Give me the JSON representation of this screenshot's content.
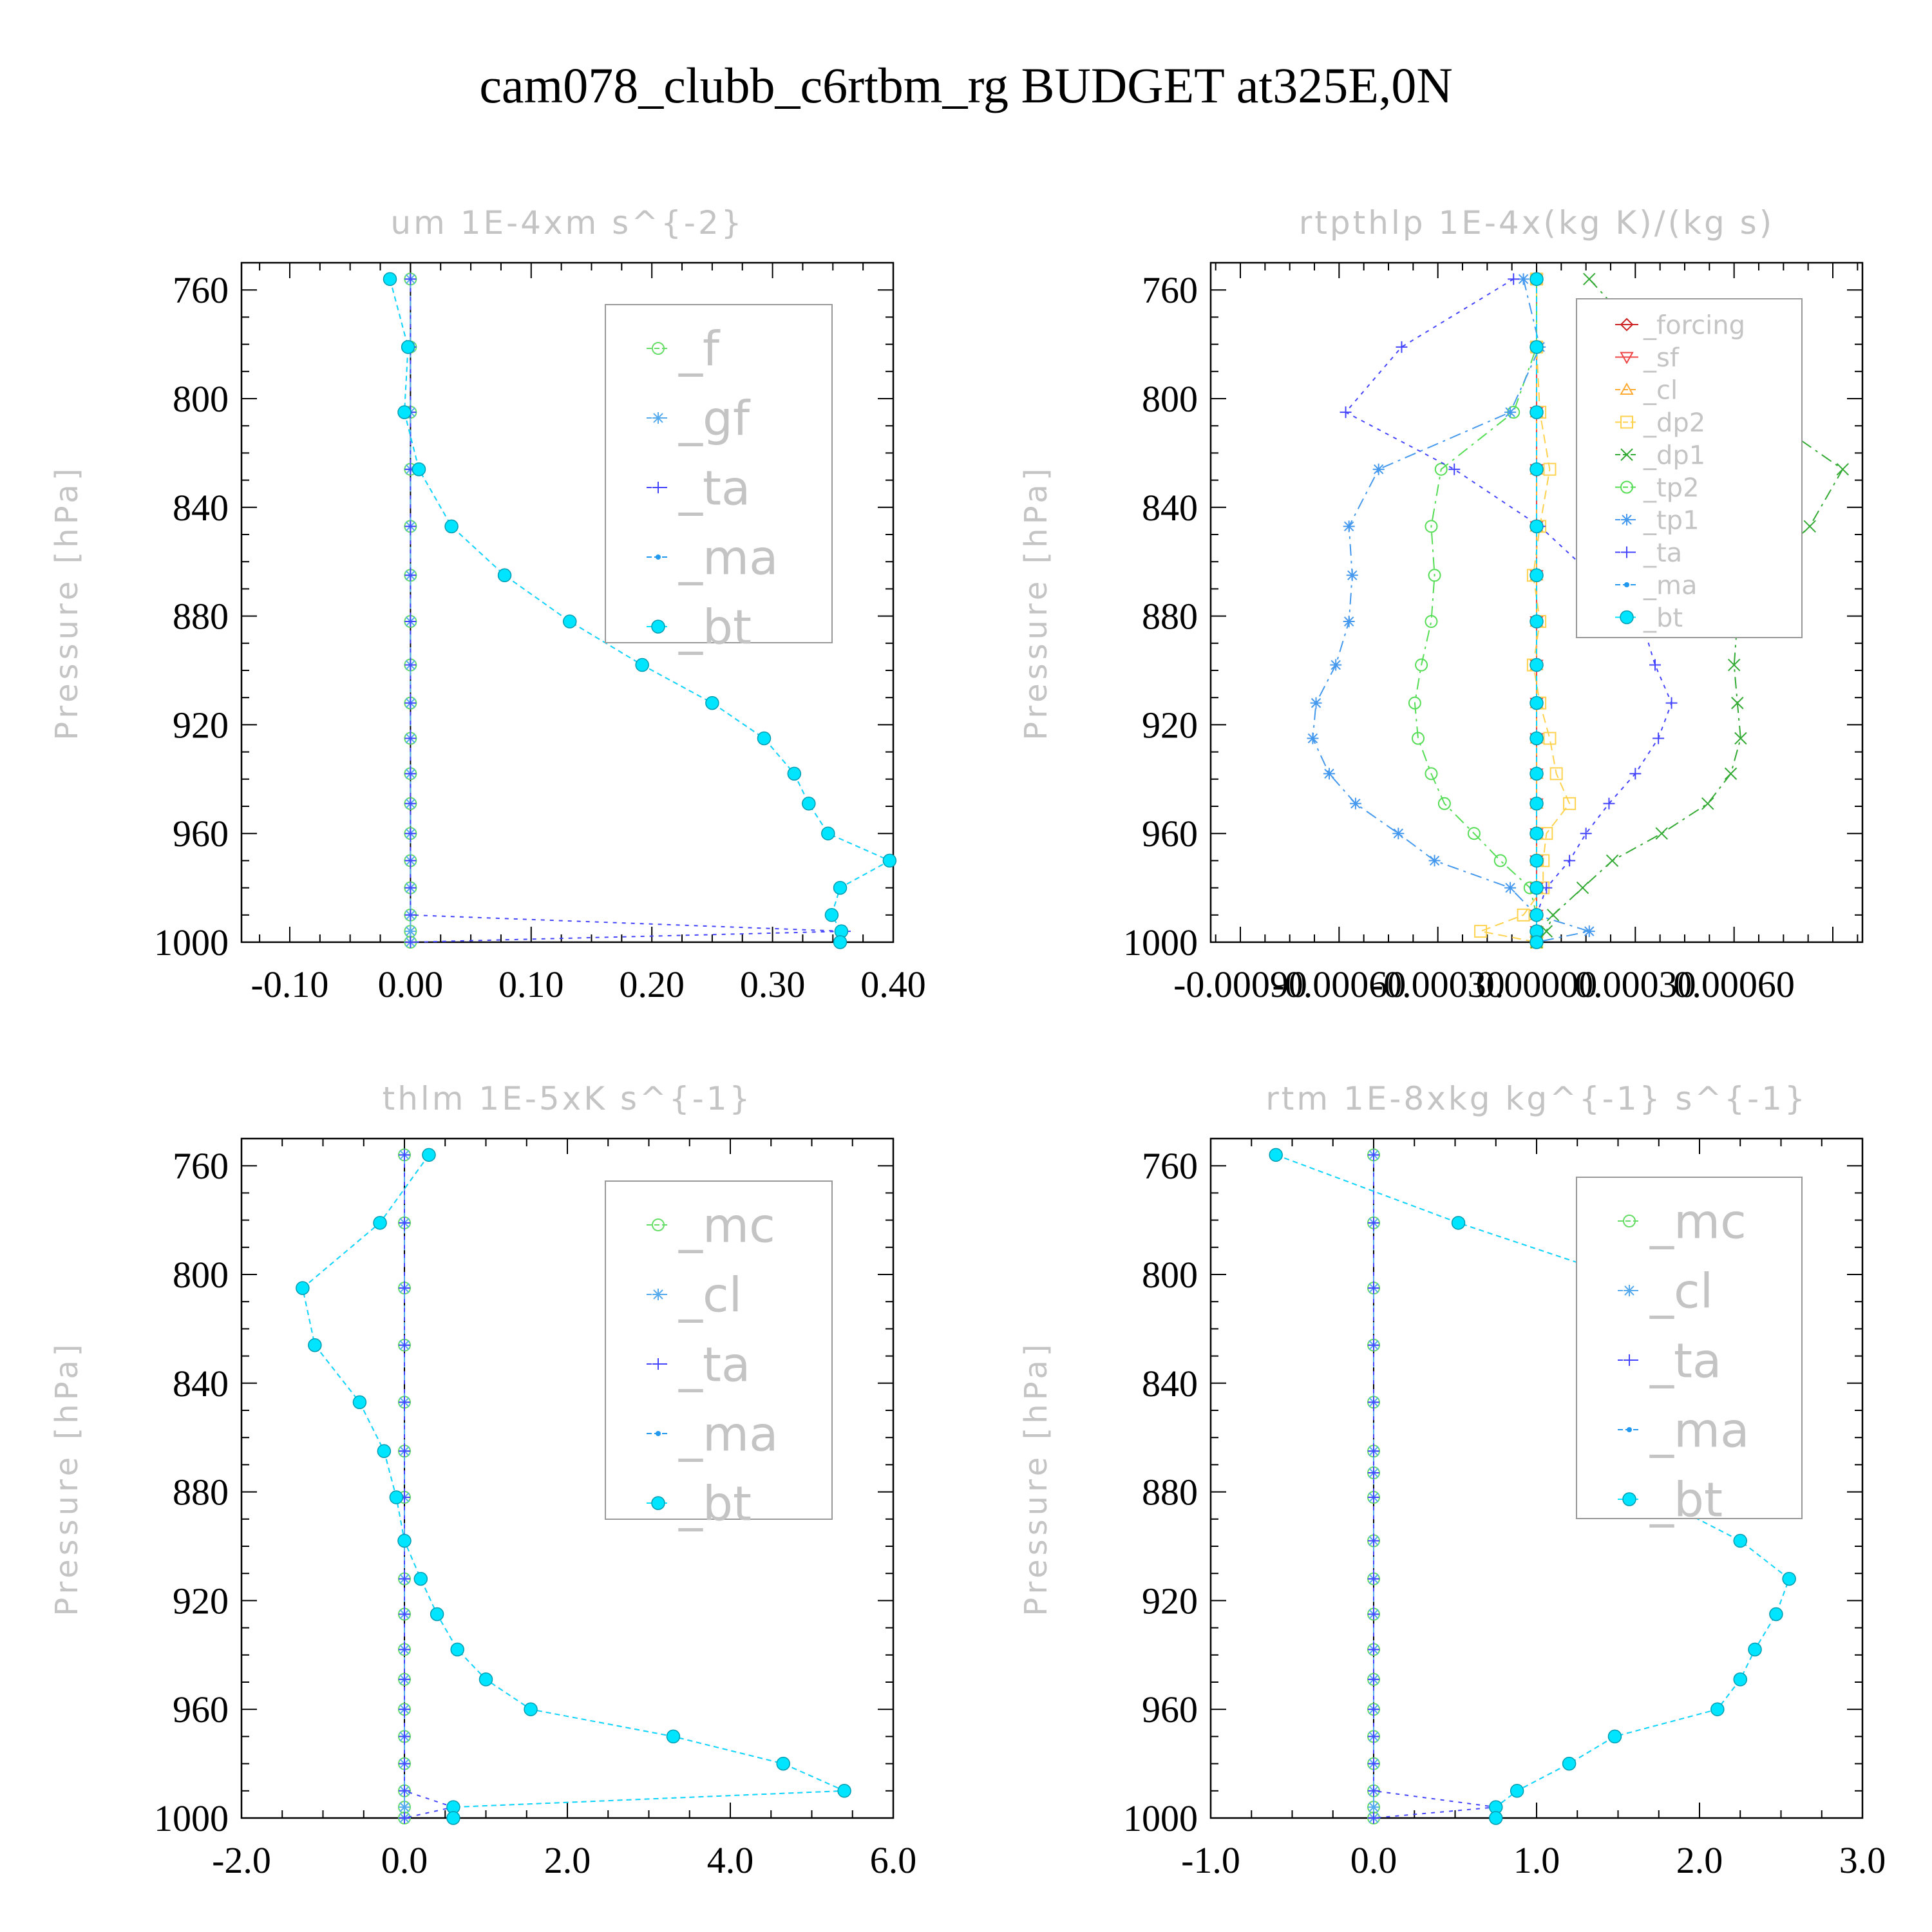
{
  "title": "cam078_clubb_c6rtbm_rg  BUDGET at325E,0N",
  "colors": {
    "forcing": "#cc2222",
    "sf": "#ee4444",
    "cl": "#ffaa33",
    "dp2": "#ffd24d",
    "dp1": "#33aa33",
    "tp2": "#55dd55",
    "tp1": "#4499ee",
    "ta": "#4444ff",
    "ma": "#2299ee",
    "bt": "#00e5ff",
    "f": "#66dd66",
    "gf": "#55aaee",
    "mc": "#66dd66"
  },
  "chart_data": [
    {
      "type": "line",
      "title": "um   1E-4xm s^{-2}",
      "ylabel": "Pressure [hPa]",
      "xlim": [
        -0.14,
        0.4
      ],
      "ylim": [
        750,
        1000
      ],
      "y_reversed": true,
      "xticks": [
        -0.1,
        0.0,
        0.1,
        0.2,
        0.3,
        0.4
      ],
      "xtick_labels": [
        "-0.10",
        "0.00",
        "0.10",
        "0.20",
        "0.30",
        "0.40"
      ],
      "yticks": [
        760,
        800,
        840,
        880,
        920,
        960,
        1000
      ],
      "ytick_labels": [
        "760",
        "800",
        "840",
        "880",
        "920",
        "960",
        "1000"
      ],
      "legend_position": "top-right",
      "pressure": [
        756,
        781,
        805,
        826,
        847,
        865,
        882,
        898,
        912,
        925,
        938,
        949,
        960,
        970,
        980,
        990,
        996,
        1000
      ],
      "series": [
        {
          "name": "_f",
          "style": "f",
          "marker": "circle-open",
          "values": [
            0,
            0,
            0,
            0,
            0,
            0,
            0,
            0,
            0,
            0,
            0,
            0,
            0,
            0,
            0,
            0,
            0,
            0
          ]
        },
        {
          "name": "_gf",
          "style": "gf",
          "marker": "star",
          "values": [
            0,
            0,
            0,
            0,
            0,
            0,
            0,
            0,
            0,
            0,
            0,
            0,
            0,
            0,
            0,
            0,
            0,
            0
          ]
        },
        {
          "name": "_ta",
          "style": "ta",
          "marker": "plus",
          "values": [
            0,
            0,
            0,
            0,
            0,
            0,
            0,
            0,
            0,
            0,
            0,
            0,
            0,
            0,
            0,
            0,
            0.36,
            0
          ]
        },
        {
          "name": "_ma",
          "style": "ma",
          "marker": "dot",
          "values": [
            -0.017,
            -0.002,
            -0.005,
            0.007,
            0.034,
            0.078,
            0.132,
            0.192,
            0.25,
            0.293,
            0.318,
            0.33,
            0.346,
            0.397,
            0.356,
            0.349,
            0.357,
            0.356
          ]
        },
        {
          "name": "_bt",
          "style": "bt",
          "marker": "filled",
          "values": [
            -0.017,
            -0.002,
            -0.005,
            0.007,
            0.034,
            0.078,
            0.132,
            0.192,
            0.25,
            0.293,
            0.318,
            0.33,
            0.346,
            0.397,
            0.356,
            0.349,
            0.357,
            0.356
          ]
        }
      ]
    },
    {
      "type": "line",
      "title": "rtpthlp   1E-4x(kg K)/(kg s)",
      "ylabel": "Pressure [hPa]",
      "xlim": [
        -0.00099,
        0.00099
      ],
      "ylim": [
        750,
        1000
      ],
      "y_reversed": true,
      "xticks": [
        -0.0009,
        -0.0006,
        -0.0003,
        0.0,
        0.0003,
        0.0006
      ],
      "xtick_labels": [
        "-0.00090",
        "-0.00060",
        "-0.00030",
        "0.00000",
        "0.00030",
        "0.00060"
      ],
      "yticks": [
        760,
        800,
        840,
        880,
        920,
        960,
        1000
      ],
      "ytick_labels": [
        "760",
        "800",
        "840",
        "880",
        "920",
        "960",
        "1000"
      ],
      "legend_position": "top-right",
      "pressure": [
        756,
        781,
        805,
        826,
        847,
        865,
        882,
        898,
        912,
        925,
        938,
        949,
        960,
        970,
        980,
        990,
        996,
        1000
      ],
      "series": [
        {
          "name": "_forcing",
          "style": "forcing",
          "marker": "diamond",
          "values": [
            0,
            0,
            0,
            0,
            0,
            0,
            0,
            0,
            0,
            0,
            0,
            0,
            0,
            0,
            0,
            0,
            0,
            0
          ]
        },
        {
          "name": "_sf",
          "style": "sf",
          "marker": "triangle-down",
          "values": [
            0,
            0,
            0,
            0,
            0,
            0,
            0,
            0,
            0,
            0,
            0,
            0,
            0,
            0,
            0,
            0,
            0,
            0
          ]
        },
        {
          "name": "_cl",
          "style": "cl",
          "marker": "triangle-up",
          "values": [
            0,
            0,
            0,
            0,
            0,
            0,
            0,
            0,
            0,
            0,
            0,
            0,
            0,
            0,
            0,
            0,
            0,
            0
          ]
        },
        {
          "name": "_dp2",
          "style": "dp2",
          "marker": "square",
          "values": [
            0.0,
            0.0,
            1e-05,
            4e-05,
            1e-05,
            -1e-05,
            1e-05,
            -1e-05,
            1e-05,
            4e-05,
            6e-05,
            0.0001,
            3e-05,
            2e-05,
            2e-05,
            -4e-05,
            -0.00017,
            0.0
          ]
        },
        {
          "name": "_dp1",
          "style": "dp1",
          "marker": "x",
          "values": [
            0.00016,
            0.00035,
            0.00068,
            0.00093,
            0.00083,
            0.00067,
            0.00061,
            0.0006,
            0.00061,
            0.00062,
            0.00059,
            0.00052,
            0.00038,
            0.00023,
            0.00014,
            5e-05,
            3e-05,
            0.0
          ]
        },
        {
          "name": "_tp2",
          "style": "tp2",
          "marker": "circle-open",
          "values": [
            0.0,
            0.0,
            -7e-05,
            -0.00029,
            -0.00032,
            -0.00031,
            -0.00032,
            -0.00035,
            -0.00037,
            -0.00036,
            -0.00032,
            -0.00028,
            -0.00019,
            -0.00011,
            -2e-05,
            0.0,
            0.0,
            0.0
          ]
        },
        {
          "name": "_tp1",
          "style": "tp1",
          "marker": "star",
          "values": [
            -4e-05,
            1e-05,
            -8e-05,
            -0.00048,
            -0.00057,
            -0.00056,
            -0.00057,
            -0.00061,
            -0.00067,
            -0.00068,
            -0.00063,
            -0.00055,
            -0.00042,
            -0.00031,
            -8e-05,
            0.0,
            0.00016,
            0.0
          ]
        },
        {
          "name": "_ta",
          "style": "ta",
          "marker": "plus",
          "values": [
            -7e-05,
            -0.00041,
            -0.00058,
            -0.00025,
            1e-05,
            0.00017,
            0.00032,
            0.00036,
            0.00041,
            0.00037,
            0.0003,
            0.00022,
            0.00015,
            0.0001,
            3e-05,
            0.0,
            0.0,
            0.0
          ]
        },
        {
          "name": "_ma",
          "style": "ma",
          "marker": "dot",
          "values": [
            0,
            0,
            0,
            0,
            0,
            0,
            0,
            0,
            0,
            0,
            0,
            0,
            0,
            0,
            0,
            0,
            0,
            0
          ]
        },
        {
          "name": "_bt",
          "style": "bt",
          "marker": "filled",
          "values": [
            0,
            0,
            0,
            0,
            0,
            0,
            0,
            0,
            0,
            0,
            0,
            0,
            0,
            0,
            0,
            0,
            0,
            0
          ]
        }
      ]
    },
    {
      "type": "line",
      "title": "thlm   1E-5xK s^{-1}",
      "ylabel": "Pressure [hPa]",
      "xlim": [
        -2.0,
        6.0
      ],
      "ylim": [
        750,
        1000
      ],
      "y_reversed": true,
      "xticks": [
        -2.0,
        0.0,
        2.0,
        4.0,
        6.0
      ],
      "xtick_labels": [
        "-2.0",
        "0.0",
        "2.0",
        "4.0",
        "6.0"
      ],
      "yticks": [
        760,
        800,
        840,
        880,
        920,
        960,
        1000
      ],
      "ytick_labels": [
        "760",
        "800",
        "840",
        "880",
        "920",
        "960",
        "1000"
      ],
      "legend_position": "top-right",
      "pressure": [
        756,
        781,
        805,
        826,
        847,
        865,
        882,
        898,
        912,
        925,
        938,
        949,
        960,
        970,
        980,
        990,
        996,
        1000
      ],
      "series": [
        {
          "name": "_mc",
          "style": "mc",
          "marker": "circle-open",
          "values": [
            0,
            0,
            0,
            0,
            0,
            0,
            0,
            0,
            0,
            0,
            0,
            0,
            0,
            0,
            0,
            0,
            0,
            0
          ]
        },
        {
          "name": "_cl",
          "style": "gf",
          "marker": "star",
          "values": [
            0,
            0,
            0,
            0,
            0,
            0,
            0,
            0,
            0,
            0,
            0,
            0,
            0,
            0,
            0,
            0,
            0,
            0
          ]
        },
        {
          "name": "_ta",
          "style": "ta",
          "marker": "plus",
          "values": [
            0,
            0,
            0,
            0,
            0,
            0,
            0,
            0,
            0,
            0,
            0,
            0,
            0,
            0,
            0,
            0,
            0.6,
            0
          ]
        },
        {
          "name": "_ma",
          "style": "ma",
          "marker": "dot",
          "values": [
            0.3,
            -0.3,
            -1.25,
            -1.1,
            -0.55,
            -0.25,
            -0.1,
            0.0,
            0.2,
            0.4,
            0.65,
            1.0,
            1.55,
            3.3,
            4.65,
            5.4,
            0.6,
            0.6
          ]
        },
        {
          "name": "_bt",
          "style": "bt",
          "marker": "filled",
          "values": [
            0.3,
            -0.3,
            -1.25,
            -1.1,
            -0.55,
            -0.25,
            -0.1,
            0.0,
            0.2,
            0.4,
            0.65,
            1.0,
            1.55,
            3.3,
            4.65,
            5.4,
            0.6,
            0.6
          ]
        }
      ]
    },
    {
      "type": "line",
      "title": "rtm   1E-8xkg kg^{-1} s^{-1}",
      "ylabel": "Pressure [hPa]",
      "xlim": [
        -1.0,
        3.0
      ],
      "ylim": [
        750,
        1000
      ],
      "y_reversed": true,
      "xticks": [
        -1.0,
        0.0,
        1.0,
        2.0,
        3.0
      ],
      "xtick_labels": [
        "-1.0",
        "0.0",
        "1.0",
        "2.0",
        "3.0"
      ],
      "yticks": [
        760,
        800,
        840,
        880,
        920,
        960,
        1000
      ],
      "ytick_labels": [
        "760",
        "800",
        "840",
        "880",
        "920",
        "960",
        "1000"
      ],
      "legend_position": "top-right",
      "pressure": [
        756,
        781,
        805,
        826,
        847,
        865,
        873,
        882,
        898,
        912,
        925,
        938,
        949,
        960,
        970,
        980,
        990,
        996,
        1000
      ],
      "series": [
        {
          "name": "_mc",
          "style": "mc",
          "marker": "circle-open",
          "values": [
            0,
            0,
            0,
            0,
            0,
            0,
            0,
            0,
            0,
            0,
            0,
            0,
            0,
            0,
            0,
            0,
            0,
            0,
            0
          ]
        },
        {
          "name": "_cl",
          "style": "gf",
          "marker": "star",
          "values": [
            0,
            0,
            0,
            0,
            0,
            0,
            0,
            0,
            0,
            0,
            0,
            0,
            0,
            0,
            0,
            0,
            0,
            0,
            0
          ]
        },
        {
          "name": "_ta",
          "style": "ta",
          "marker": "plus",
          "values": [
            0,
            0,
            0,
            0,
            0,
            0,
            0,
            0,
            0,
            0,
            0,
            0,
            0,
            0,
            0,
            0,
            0,
            0.75,
            0
          ]
        },
        {
          "name": "_ma",
          "style": "ma",
          "marker": "dot",
          "values": [
            -0.6,
            0.52,
            1.72,
            2.12,
            1.62,
            1.53,
            1.66,
            1.73,
            2.25,
            2.55,
            2.47,
            2.34,
            2.25,
            2.11,
            1.48,
            1.2,
            0.88,
            0.75,
            0.75
          ]
        },
        {
          "name": "_bt",
          "style": "bt",
          "marker": "filled",
          "values": [
            -0.6,
            0.52,
            1.72,
            2.12,
            1.62,
            1.53,
            1.66,
            1.73,
            2.25,
            2.55,
            2.47,
            2.34,
            2.25,
            2.11,
            1.48,
            1.2,
            0.88,
            0.75,
            0.75
          ]
        }
      ]
    }
  ]
}
